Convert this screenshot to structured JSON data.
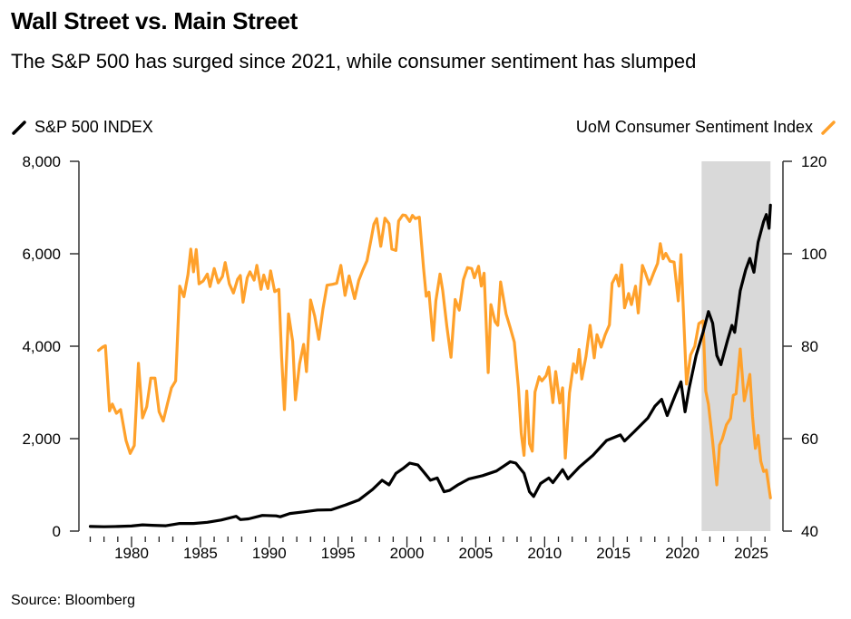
{
  "header": {
    "title": "Wall Street vs. Main Street",
    "subtitle": "The S&P 500 has surged since 2021, while consumer sentiment has slumped"
  },
  "legend": {
    "left": {
      "label": "S&P 500 INDEX",
      "color": "#000000",
      "icon": "diagonal-line-icon"
    },
    "right": {
      "label": "UoM Consumer Sentiment Index",
      "color": "#FFA12B",
      "icon": "diagonal-line-icon"
    }
  },
  "footer": {
    "source": "Source: Bloomberg"
  },
  "chart_data": {
    "type": "line",
    "title": "Wall Street vs. Main Street",
    "subtitle": "The S&P 500 has surged since 2021, while consumer sentiment has slumped",
    "xlabel": "",
    "xlim": [
      1976.4,
      2027.2
    ],
    "x_ticks": [
      1980,
      1985,
      1990,
      1995,
      2000,
      2005,
      2010,
      2015,
      2020,
      2025
    ],
    "x_tick_labels": [
      "1980",
      "1985",
      "1990",
      "1995",
      "2000",
      "2005",
      "2010",
      "2015",
      "2020",
      "2025"
    ],
    "y_left": {
      "label": "S&P 500 INDEX",
      "lim": [
        0,
        8000
      ],
      "ticks": [
        0,
        2000,
        4000,
        6000,
        8000
      ],
      "tick_labels": [
        "0",
        "2,000",
        "4,000",
        "6,000",
        "8,000"
      ]
    },
    "y_right": {
      "label": "UoM Consumer Sentiment Index",
      "lim": [
        40,
        120
      ],
      "ticks": [
        40,
        60,
        80,
        100,
        120
      ],
      "tick_labels": [
        "40",
        "60",
        "80",
        "100",
        "120"
      ]
    },
    "shaded_region": {
      "x": [
        2021.4,
        2026.4
      ],
      "color": "#D9D9D9"
    },
    "grid": false,
    "legend": "top",
    "series": [
      {
        "name": "S&P 500 INDEX",
        "axis": "left",
        "color": "#000000",
        "points": [
          [
            1977.0,
            100
          ],
          [
            1978.0,
            95
          ],
          [
            1979.0,
            100
          ],
          [
            1980.0,
            110
          ],
          [
            1980.8,
            135
          ],
          [
            1981.5,
            125
          ],
          [
            1982.5,
            115
          ],
          [
            1983.5,
            165
          ],
          [
            1984.5,
            165
          ],
          [
            1985.5,
            190
          ],
          [
            1986.5,
            240
          ],
          [
            1987.6,
            320
          ],
          [
            1987.9,
            250
          ],
          [
            1988.5,
            265
          ],
          [
            1989.5,
            340
          ],
          [
            1990.5,
            330
          ],
          [
            1990.8,
            310
          ],
          [
            1991.5,
            380
          ],
          [
            1992.5,
            415
          ],
          [
            1993.5,
            455
          ],
          [
            1994.5,
            460
          ],
          [
            1995.5,
            560
          ],
          [
            1996.5,
            670
          ],
          [
            1997.5,
            900
          ],
          [
            1998.2,
            1100
          ],
          [
            1998.7,
            1000
          ],
          [
            1999.2,
            1250
          ],
          [
            1999.7,
            1350
          ],
          [
            2000.2,
            1470
          ],
          [
            2000.8,
            1430
          ],
          [
            2001.3,
            1250
          ],
          [
            2001.7,
            1100
          ],
          [
            2002.2,
            1150
          ],
          [
            2002.7,
            850
          ],
          [
            2003.1,
            880
          ],
          [
            2003.7,
            1000
          ],
          [
            2004.5,
            1130
          ],
          [
            2005.5,
            1200
          ],
          [
            2006.5,
            1300
          ],
          [
            2007.5,
            1500
          ],
          [
            2007.9,
            1470
          ],
          [
            2008.5,
            1250
          ],
          [
            2008.9,
            850
          ],
          [
            2009.2,
            750
          ],
          [
            2009.7,
            1030
          ],
          [
            2010.3,
            1150
          ],
          [
            2010.6,
            1050
          ],
          [
            2011.3,
            1330
          ],
          [
            2011.7,
            1130
          ],
          [
            2012.5,
            1380
          ],
          [
            2013.5,
            1640
          ],
          [
            2014.5,
            1960
          ],
          [
            2015.5,
            2080
          ],
          [
            2015.8,
            1950
          ],
          [
            2016.5,
            2150
          ],
          [
            2017.5,
            2450
          ],
          [
            2018.0,
            2700
          ],
          [
            2018.5,
            2850
          ],
          [
            2018.9,
            2500
          ],
          [
            2019.5,
            2950
          ],
          [
            2019.9,
            3230
          ],
          [
            2020.2,
            2580
          ],
          [
            2020.5,
            3100
          ],
          [
            2021.0,
            3800
          ],
          [
            2021.5,
            4300
          ],
          [
            2021.9,
            4750
          ],
          [
            2022.2,
            4500
          ],
          [
            2022.5,
            3800
          ],
          [
            2022.8,
            3600
          ],
          [
            2023.3,
            4150
          ],
          [
            2023.6,
            4450
          ],
          [
            2023.8,
            4300
          ],
          [
            2024.2,
            5200
          ],
          [
            2024.6,
            5650
          ],
          [
            2024.9,
            5900
          ],
          [
            2025.2,
            5600
          ],
          [
            2025.5,
            6250
          ],
          [
            2025.9,
            6700
          ],
          [
            2026.1,
            6850
          ],
          [
            2026.3,
            6550
          ],
          [
            2026.4,
            7050
          ]
        ]
      },
      {
        "name": "UoM Consumer Sentiment Index",
        "axis": "right",
        "color": "#FFA12B",
        "points": [
          [
            1977.6,
            79.1
          ],
          [
            1977.9,
            79.8
          ],
          [
            1978.1,
            80.1
          ],
          [
            1978.4,
            66
          ],
          [
            1978.6,
            67.5
          ],
          [
            1978.9,
            65.5
          ],
          [
            1979.2,
            66.3
          ],
          [
            1979.6,
            59.6
          ],
          [
            1979.9,
            56.8
          ],
          [
            1980.2,
            58.5
          ],
          [
            1980.5,
            76.3
          ],
          [
            1980.8,
            64.5
          ],
          [
            1981.1,
            66.9
          ],
          [
            1981.4,
            73.1
          ],
          [
            1981.7,
            73.1
          ],
          [
            1982.0,
            65.8
          ],
          [
            1982.3,
            63.8
          ],
          [
            1982.6,
            67.5
          ],
          [
            1982.9,
            71.0
          ],
          [
            1983.2,
            72.5
          ],
          [
            1983.5,
            93.0
          ],
          [
            1983.8,
            90.7
          ],
          [
            1984.1,
            95.5
          ],
          [
            1984.3,
            101.0
          ],
          [
            1984.5,
            96.1
          ],
          [
            1984.7,
            100.9
          ],
          [
            1984.9,
            93.5
          ],
          [
            1985.2,
            94.1
          ],
          [
            1985.5,
            95.6
          ],
          [
            1985.7,
            92.9
          ],
          [
            1986.0,
            96.8
          ],
          [
            1986.3,
            93.7
          ],
          [
            1986.6,
            95.1
          ],
          [
            1986.8,
            98.1
          ],
          [
            1987.1,
            93.5
          ],
          [
            1987.4,
            91.5
          ],
          [
            1987.7,
            94.5
          ],
          [
            1987.9,
            95.3
          ],
          [
            1988.1,
            89.5
          ],
          [
            1988.4,
            94.8
          ],
          [
            1988.6,
            96.1
          ],
          [
            1988.9,
            94.3
          ],
          [
            1989.1,
            97.5
          ],
          [
            1989.4,
            92.3
          ],
          [
            1989.6,
            95.4
          ],
          [
            1989.9,
            92.5
          ],
          [
            1990.1,
            96.3
          ],
          [
            1990.4,
            91.8
          ],
          [
            1990.7,
            92.3
          ],
          [
            1990.9,
            77.7
          ],
          [
            1991.1,
            66.3
          ],
          [
            1991.4,
            87.0
          ],
          [
            1991.7,
            81.0
          ],
          [
            1991.9,
            68.4
          ],
          [
            1992.2,
            76.2
          ],
          [
            1992.5,
            80.4
          ],
          [
            1992.7,
            74.5
          ],
          [
            1993.0,
            90.0
          ],
          [
            1993.3,
            86.5
          ],
          [
            1993.6,
            81.5
          ],
          [
            1993.9,
            88.1
          ],
          [
            1994.2,
            93.2
          ],
          [
            1994.6,
            93.4
          ],
          [
            1994.9,
            93.6
          ],
          [
            1995.2,
            97.5
          ],
          [
            1995.5,
            91.0
          ],
          [
            1995.8,
            95.2
          ],
          [
            1996.2,
            90.3
          ],
          [
            1996.5,
            94.2
          ],
          [
            1996.8,
            96.5
          ],
          [
            1997.1,
            98.5
          ],
          [
            1997.4,
            103.2
          ],
          [
            1997.6,
            106.4
          ],
          [
            1997.8,
            107.6
          ],
          [
            1998.1,
            101.6
          ],
          [
            1998.4,
            107.7
          ],
          [
            1998.7,
            106.5
          ],
          [
            1998.9,
            101.0
          ],
          [
            1999.2,
            100.7
          ],
          [
            1999.4,
            107.1
          ],
          [
            1999.7,
            108.4
          ],
          [
            1999.9,
            108.3
          ],
          [
            2000.2,
            107.0
          ],
          [
            2000.4,
            108.3
          ],
          [
            2000.6,
            107.6
          ],
          [
            2000.9,
            107.9
          ],
          [
            2001.2,
            97.0
          ],
          [
            2001.4,
            90.8
          ],
          [
            2001.6,
            91.7
          ],
          [
            2001.9,
            81.3
          ],
          [
            2002.1,
            89.8
          ],
          [
            2002.4,
            95.6
          ],
          [
            2002.6,
            92.0
          ],
          [
            2002.9,
            84.2
          ],
          [
            2003.2,
            77.6
          ],
          [
            2003.5,
            90.1
          ],
          [
            2003.8,
            87.8
          ],
          [
            2004.1,
            94.4
          ],
          [
            2004.4,
            97.0
          ],
          [
            2004.7,
            96.8
          ],
          [
            2004.9,
            94.8
          ],
          [
            2005.2,
            97.3
          ],
          [
            2005.4,
            93.0
          ],
          [
            2005.6,
            95.8
          ],
          [
            2005.9,
            74.3
          ],
          [
            2006.1,
            89.0
          ],
          [
            2006.4,
            85.3
          ],
          [
            2006.6,
            84.5
          ],
          [
            2006.8,
            93.9
          ],
          [
            2007.2,
            87.0
          ],
          [
            2007.5,
            84.0
          ],
          [
            2007.8,
            80.9
          ],
          [
            2008.1,
            70.8
          ],
          [
            2008.3,
            61.2
          ],
          [
            2008.5,
            56.4
          ],
          [
            2008.7,
            70.3
          ],
          [
            2008.9,
            58.9
          ],
          [
            2009.1,
            57.3
          ],
          [
            2009.3,
            70.1
          ],
          [
            2009.6,
            73.4
          ],
          [
            2009.8,
            72.5
          ],
          [
            2010.1,
            73.6
          ],
          [
            2010.3,
            75.5
          ],
          [
            2010.6,
            67.8
          ],
          [
            2010.8,
            74.5
          ],
          [
            2011.1,
            67.7
          ],
          [
            2011.3,
            71.0
          ],
          [
            2011.5,
            55.8
          ],
          [
            2011.8,
            69.9
          ],
          [
            2012.1,
            76.2
          ],
          [
            2012.3,
            74.3
          ],
          [
            2012.5,
            79.3
          ],
          [
            2012.7,
            72.9
          ],
          [
            2013.0,
            77.8
          ],
          [
            2013.3,
            84.5
          ],
          [
            2013.6,
            77.5
          ],
          [
            2013.8,
            82.5
          ],
          [
            2014.1,
            79.8
          ],
          [
            2014.4,
            82.5
          ],
          [
            2014.7,
            84.6
          ],
          [
            2014.9,
            93.6
          ],
          [
            2015.2,
            95.4
          ],
          [
            2015.4,
            93.0
          ],
          [
            2015.6,
            97.6
          ],
          [
            2015.8,
            88.3
          ],
          [
            2016.1,
            91.4
          ],
          [
            2016.3,
            89.0
          ],
          [
            2016.6,
            93.0
          ],
          [
            2016.8,
            87.2
          ],
          [
            2017.1,
            97.5
          ],
          [
            2017.3,
            96.0
          ],
          [
            2017.6,
            93.4
          ],
          [
            2017.9,
            95.7
          ],
          [
            2018.2,
            97.9
          ],
          [
            2018.4,
            102.2
          ],
          [
            2018.6,
            98.9
          ],
          [
            2018.8,
            100.1
          ],
          [
            2019.1,
            98.4
          ],
          [
            2019.4,
            98.2
          ],
          [
            2019.7,
            89.8
          ],
          [
            2019.9,
            99.8
          ],
          [
            2020.3,
            71.8
          ],
          [
            2020.6,
            78.1
          ],
          [
            2020.9,
            80.0
          ],
          [
            2021.2,
            84.9
          ],
          [
            2021.5,
            85.5
          ],
          [
            2021.7,
            70.3
          ],
          [
            2021.9,
            67.4
          ],
          [
            2022.2,
            59.4
          ],
          [
            2022.5,
            50.0
          ],
          [
            2022.7,
            58.6
          ],
          [
            2022.9,
            59.9
          ],
          [
            2023.2,
            63.0
          ],
          [
            2023.5,
            64.4
          ],
          [
            2023.7,
            69.4
          ],
          [
            2023.9,
            69.7
          ],
          [
            2024.2,
            79.4
          ],
          [
            2024.5,
            68.2
          ],
          [
            2024.9,
            73.9
          ],
          [
            2025.1,
            64.7
          ],
          [
            2025.3,
            57.9
          ],
          [
            2025.5,
            60.7
          ],
          [
            2025.7,
            55.1
          ],
          [
            2025.9,
            52.9
          ],
          [
            2026.1,
            53.2
          ],
          [
            2026.4,
            47.2
          ]
        ]
      }
    ]
  }
}
